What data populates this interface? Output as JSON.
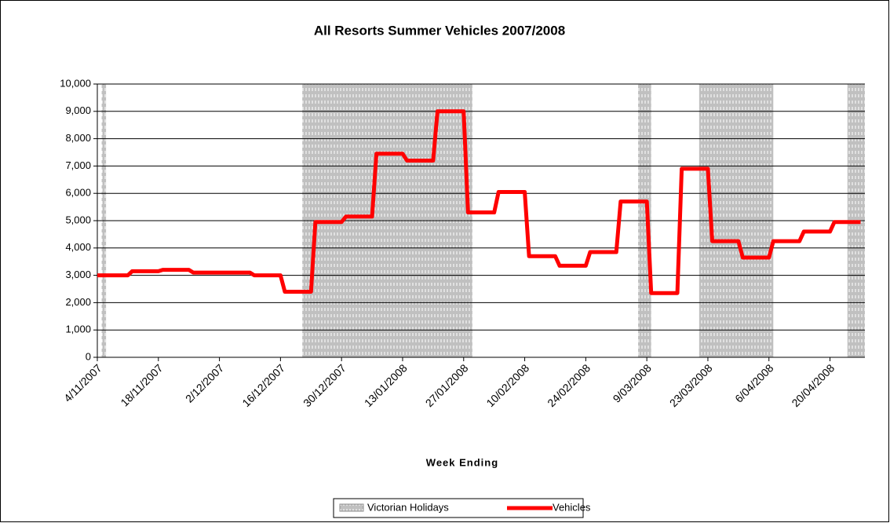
{
  "chart_data": {
    "type": "line",
    "title": "All Resorts Summer Vehicles 2007/2008",
    "x_label": "Week Ending",
    "x": [
      "4/11/2007",
      "11/11/2007",
      "12/11/2007",
      "18/11/2007",
      "19/11/2007",
      "25/11/2007",
      "26/11/2007",
      "2/12/2007",
      "3/12/2007",
      "9/12/2007",
      "10/12/2007",
      "16/12/2007",
      "17/12/2007",
      "23/12/2007",
      "24/12/2007",
      "30/12/2007",
      "31/12/2007",
      "6/01/2008",
      "7/01/2008",
      "13/01/2008",
      "14/01/2008",
      "20/01/2008",
      "21/01/2008",
      "27/01/2008",
      "28/01/2008",
      "3/02/2008",
      "4/02/2008",
      "10/02/2008",
      "11/02/2008",
      "17/02/2008",
      "18/02/2008",
      "24/02/2008",
      "25/02/2008",
      "2/03/2008",
      "3/03/2008",
      "9/03/2008",
      "10/03/2008",
      "16/03/2008",
      "17/03/2008",
      "23/03/2008",
      "24/03/2008",
      "30/03/2008",
      "31/03/2008",
      "6/04/2008",
      "7/04/2008",
      "13/04/2008",
      "14/04/2008",
      "20/04/2008",
      "21/04/2008",
      "27/04/2008"
    ],
    "series": [
      {
        "name": "Vehicles",
        "color": "#ff0000",
        "values": [
          3000,
          3000,
          3150,
          3150,
          3200,
          3200,
          3100,
          3100,
          3100,
          3100,
          3000,
          3000,
          2400,
          2400,
          4950,
          4950,
          5150,
          5150,
          7450,
          7450,
          7200,
          7200,
          9000,
          9000,
          5300,
          5300,
          6050,
          6050,
          3700,
          3700,
          3350,
          3350,
          3850,
          3850,
          5700,
          5700,
          2350,
          2350,
          6900,
          6900,
          4250,
          4250,
          3650,
          3650,
          4250,
          4250,
          4600,
          4600,
          4950,
          4950
        ]
      }
    ],
    "holidays": {
      "name": "Victorian Holidays",
      "color": "#c0c0c0",
      "periods": [
        [
          "5/11/2007",
          "6/11/2007"
        ],
        [
          "21/12/2007",
          "29/01/2008"
        ],
        [
          "7/03/2008",
          "10/03/2008"
        ],
        [
          "21/03/2008",
          "7/04/2008"
        ],
        [
          "24/04/2008",
          "28/04/2008"
        ]
      ]
    },
    "xlim": [
      "4/11/2007",
      "28/04/2008"
    ],
    "xticks": [
      "4/11/2007",
      "18/11/2007",
      "2/12/2007",
      "16/12/2007",
      "30/12/2007",
      "13/01/2008",
      "27/01/2008",
      "10/02/2008",
      "24/02/2008",
      "9/03/2008",
      "23/03/2008",
      "6/04/2008",
      "20/04/2008"
    ],
    "ylim": [
      0,
      10000
    ],
    "yticks": [
      0,
      {
        "value": 1000,
        "label": "1,000"
      },
      {
        "value": 2000,
        "label": "2,000"
      },
      {
        "value": 3000,
        "label": "3,000"
      },
      {
        "value": 4000,
        "label": "4,000"
      },
      {
        "value": 5000,
        "label": "5,000"
      },
      {
        "value": 6000,
        "label": "6,000"
      },
      {
        "value": 7000,
        "label": "7,000"
      },
      {
        "value": 8000,
        "label": "8,000"
      },
      {
        "value": 9000,
        "label": "9,000"
      },
      {
        "value": 10000,
        "label": "10,000"
      }
    ],
    "grid": true,
    "legend": "bottom"
  }
}
